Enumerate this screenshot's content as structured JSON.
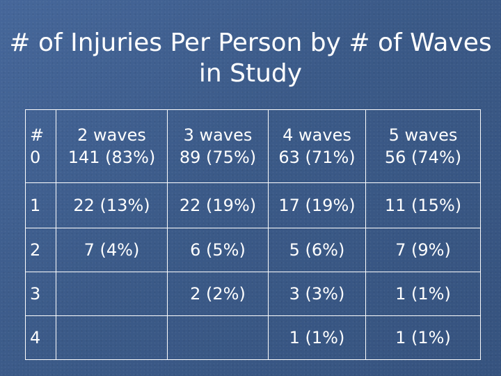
{
  "slide": {
    "title": "# of Injuries Per Person by # of Waves in Study"
  },
  "table": {
    "header_row": {
      "col0_top": "#",
      "col0_bottom": "0",
      "cols": [
        {
          "header": "2 waves",
          "value": "141 (83%)"
        },
        {
          "header": "3 waves",
          "value": "89 (75%)"
        },
        {
          "header": "4 waves",
          "value": "63 (71%)"
        },
        {
          "header": "5 waves",
          "value": "56 (74%)"
        }
      ]
    },
    "rows": [
      {
        "label": "1",
        "cells": [
          "22 (13%)",
          "22 (19%)",
          "17 (19%)",
          "11 (15%)"
        ]
      },
      {
        "label": "2",
        "cells": [
          "7 (4%)",
          "6 (5%)",
          "5 (6%)",
          "7 (9%)"
        ]
      },
      {
        "label": "3",
        "cells": [
          "",
          "2 (2%)",
          "3 (3%)",
          "1 (1%)"
        ]
      },
      {
        "label": "4",
        "cells": [
          "",
          "",
          "1 (1%)",
          "1 (1%)"
        ]
      }
    ]
  }
}
